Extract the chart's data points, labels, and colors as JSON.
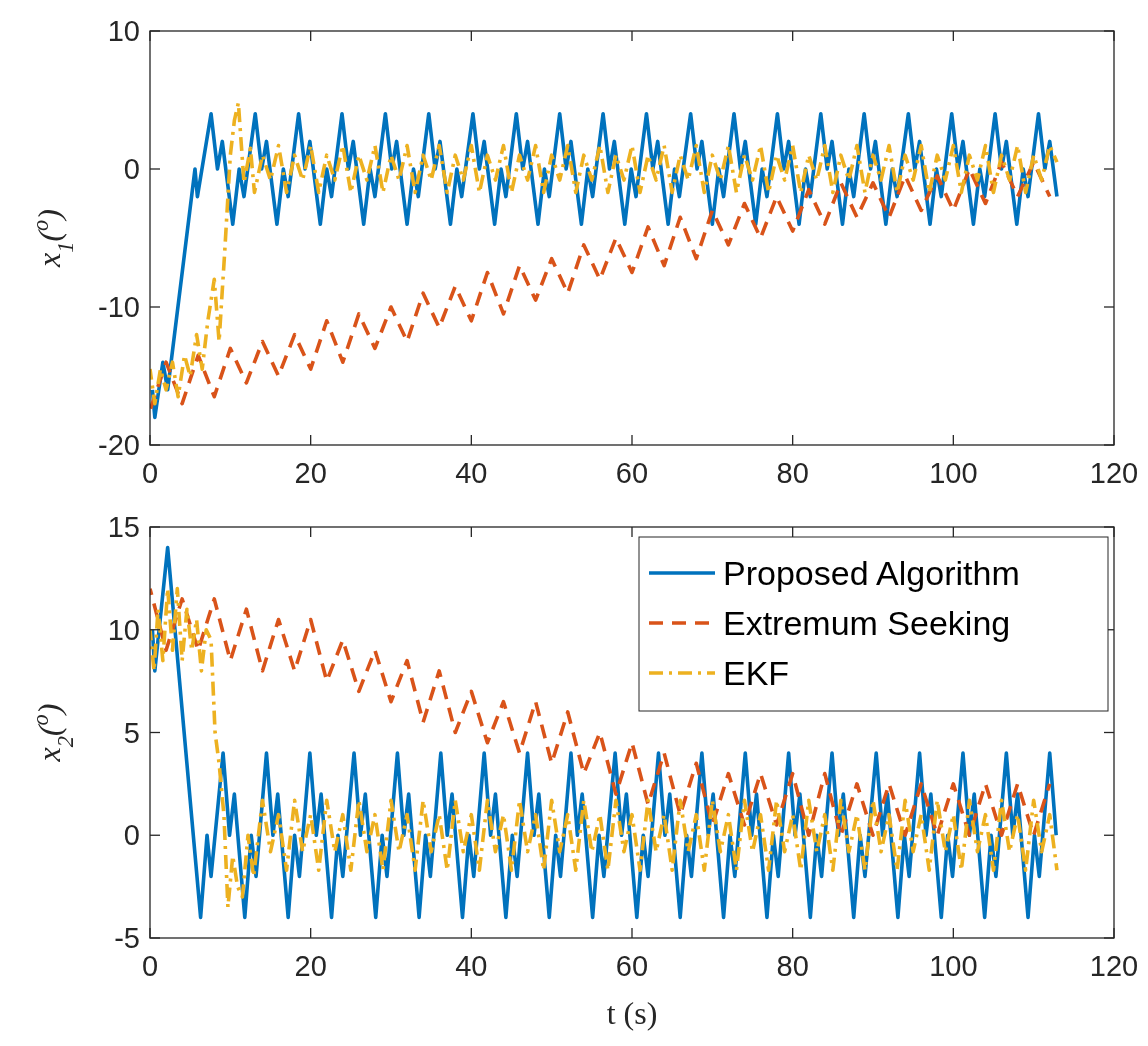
{
  "chart_data": [
    {
      "type": "line",
      "ylabel": "x$_{1}$($^{o}$)",
      "xlim": [
        0,
        120
      ],
      "xticks": [
        0,
        20,
        40,
        60,
        80,
        100,
        120
      ],
      "ylim": [
        -20,
        10
      ],
      "yticks": [
        -20,
        -10,
        0,
        10
      ],
      "legend": false,
      "series": [
        {
          "color": "#0072bd",
          "line_style": "solid",
          "x": [
            0.3,
            0.6,
            1.6,
            2.2,
            5.6,
            5.9,
            7.6,
            8.4,
            9.0,
            10.3,
            11.1,
            11.7,
            13.1,
            13.9,
            14.5,
            15.8,
            16.6,
            17.2,
            18.5,
            19.3,
            19.9,
            21.2,
            22.0,
            22.6,
            23.9,
            24.7,
            25.3,
            26.6,
            27.4,
            28.0,
            29.3,
            30.1,
            30.7,
            32.0,
            32.8,
            33.4,
            34.7,
            35.5,
            36.1,
            37.4,
            38.2,
            38.8,
            40.2,
            41.0,
            41.6,
            42.9,
            43.7,
            44.3,
            45.6,
            46.4,
            47.0,
            48.3,
            49.1,
            49.7,
            51.0,
            51.8,
            52.4,
            53.7,
            54.5,
            55.1,
            56.4,
            57.2,
            57.8,
            59.1,
            59.9,
            60.5,
            61.8,
            62.6,
            63.2,
            64.5,
            65.3,
            65.9,
            67.3,
            68.1,
            68.7,
            70.0,
            70.8,
            71.4,
            72.7,
            73.5,
            74.1,
            75.4,
            76.2,
            76.8,
            78.1,
            78.9,
            79.5,
            80.8,
            81.6,
            82.2,
            83.5,
            84.3,
            84.9,
            86.2,
            87.0,
            87.6,
            88.9,
            89.7,
            90.3,
            91.6,
            92.4,
            93.0,
            94.4,
            95.2,
            95.8,
            97.1,
            97.9,
            98.5,
            99.8,
            100.6,
            101.2,
            102.5,
            103.3,
            103.9,
            105.2,
            106.0,
            106.6,
            107.9,
            108.7,
            109.3,
            110.6,
            111.4,
            112.0,
            112.9
          ],
          "values": [
            -16,
            -18,
            -14,
            -16,
            0,
            -2,
            4,
            0,
            2,
            -4,
            0,
            -2,
            4,
            0,
            2,
            -4,
            0,
            -2,
            4,
            0,
            2,
            -4,
            0,
            -2,
            4,
            0,
            2,
            -4,
            0,
            -2,
            4,
            0,
            2,
            -4,
            0,
            -2,
            4,
            0,
            2,
            -4,
            0,
            -2,
            4,
            0,
            2,
            -4,
            0,
            -2,
            4,
            0,
            2,
            -4,
            0,
            -2,
            4,
            0,
            2,
            -4,
            0,
            -2,
            4,
            0,
            2,
            -4,
            0,
            -2,
            4,
            0,
            2,
            -4,
            0,
            -2,
            4,
            0,
            2,
            -4,
            0,
            -2,
            4,
            0,
            2,
            -4,
            0,
            -2,
            4,
            0,
            2,
            -4,
            0,
            -2,
            4,
            0,
            2,
            -4,
            0,
            -2,
            4,
            0,
            2,
            -4,
            0,
            -2,
            4,
            0,
            2,
            -4,
            0,
            -2,
            4,
            0,
            2,
            -4,
            0,
            -2,
            4,
            0,
            2,
            -4,
            0,
            -2,
            4,
            0,
            2,
            -2
          ]
        },
        {
          "color": "#d95319",
          "line_style": "dashed",
          "x": [
            0,
            2,
            4,
            6,
            8,
            10,
            12,
            14,
            16,
            18,
            20,
            22,
            24,
            26,
            28,
            30,
            32,
            34,
            36,
            38,
            40,
            42,
            44,
            46,
            48,
            50,
            52,
            54,
            56,
            58,
            60,
            62,
            64,
            66,
            68,
            70,
            72,
            74,
            76,
            78,
            80,
            82,
            84,
            86,
            88,
            90,
            92,
            94,
            96,
            98,
            100,
            102,
            104,
            106,
            108,
            110,
            112
          ],
          "values": [
            -17.5,
            -14,
            -17,
            -13.5,
            -16.5,
            -13,
            -15.5,
            -12.5,
            -15,
            -12,
            -14.5,
            -11,
            -14,
            -10.5,
            -13,
            -10,
            -12.5,
            -9,
            -11.5,
            -8.5,
            -11,
            -7.5,
            -10.5,
            -7,
            -9.5,
            -6.5,
            -9,
            -5.5,
            -8,
            -5,
            -7.5,
            -4.2,
            -7,
            -3.5,
            -6.5,
            -3,
            -5.5,
            -2.5,
            -5,
            -2,
            -4.5,
            -1.5,
            -4,
            -1,
            -3.5,
            -1,
            -3.5,
            -0.5,
            -3,
            -0.5,
            -3,
            0,
            -2.5,
            0.5,
            -2,
            0.5,
            -2
          ]
        },
        {
          "color": "#edb120",
          "line_style": "dashdot",
          "x": [
            0,
            0.6,
            1.3,
            2,
            2.8,
            3.5,
            4.3,
            5,
            5.8,
            6.5,
            7.2,
            8,
            8.6,
            9.3,
            10,
            10.5,
            11,
            11.7,
            12.5,
            13,
            14,
            15,
            16,
            17,
            18,
            19,
            20,
            21,
            22,
            23,
            24,
            25,
            26,
            27,
            28,
            29,
            30,
            31,
            32,
            33,
            34,
            35,
            36,
            37,
            38,
            39,
            40,
            41,
            42,
            43,
            44,
            45,
            46,
            47,
            48,
            49,
            50,
            51,
            52,
            53,
            54,
            55,
            56,
            57,
            58,
            59,
            60,
            61,
            62,
            63,
            64,
            65,
            66,
            67,
            68,
            69,
            70,
            71,
            72,
            73,
            74,
            75,
            76,
            77,
            78,
            79,
            80,
            81,
            82,
            83,
            84,
            85,
            86,
            87,
            88,
            89,
            90,
            91,
            92,
            93,
            94,
            95,
            96,
            97,
            98,
            99,
            100,
            101,
            102,
            103,
            104,
            105,
            106,
            107,
            108,
            109,
            110,
            111,
            112,
            112.9
          ],
          "values": [
            -14.5,
            -17,
            -14.5,
            -16,
            -14,
            -16.5,
            -13.5,
            -15,
            -12,
            -14.5,
            -11,
            -8,
            -12.5,
            -6,
            1,
            3.5,
            4.8,
            -1,
            1.5,
            -1.7,
            1.0,
            -0.8,
            1.7,
            -1.7,
            1.0,
            -0.8,
            1.7,
            -1.7,
            1.0,
            -0.8,
            1.7,
            -1.7,
            1.0,
            -0.8,
            1.7,
            -1.7,
            1.0,
            -0.8,
            1.7,
            -1.7,
            1.0,
            -0.8,
            1.7,
            -1.7,
            1.0,
            -0.8,
            1.7,
            -1.7,
            1.0,
            -0.8,
            1.7,
            -1.7,
            1.0,
            -0.8,
            1.7,
            -1.7,
            1.0,
            -0.8,
            1.7,
            -1.7,
            1.0,
            -0.8,
            1.7,
            -1.7,
            1.0,
            -0.8,
            1.7,
            -1.7,
            1.0,
            -0.8,
            1.7,
            -1.7,
            1.0,
            -0.8,
            1.7,
            -1.7,
            1.0,
            -0.8,
            1.7,
            -1.7,
            1.0,
            -0.8,
            1.7,
            -1.7,
            1.0,
            -0.8,
            1.7,
            -1.7,
            1.0,
            -0.8,
            1.7,
            -1.7,
            1.0,
            -0.8,
            1.7,
            -1.7,
            1.0,
            -0.8,
            1.7,
            -1.7,
            1.0,
            -0.8,
            1.7,
            -1.7,
            1.0,
            -0.8,
            1.7,
            -1.7,
            1.0,
            -0.8,
            1.7,
            -1.7,
            1.0,
            -0.8,
            1.7,
            -1.7,
            1.0,
            -0.8,
            1.7,
            0.5
          ]
        }
      ]
    },
    {
      "type": "line",
      "xlabel": "t (s)",
      "ylabel": "x$_{2}$($^{o}$)",
      "xlim": [
        0,
        120
      ],
      "xticks": [
        0,
        20,
        40,
        60,
        80,
        100,
        120
      ],
      "ylim": [
        -5,
        15
      ],
      "yticks": [
        -5,
        0,
        5,
        10,
        15
      ],
      "legend": "top right",
      "series": [
        {
          "name": "Proposed Algorithm",
          "color": "#0072bd",
          "line_style": "solid",
          "x": [
            0.3,
            0.6,
            2.2,
            6.3,
            7.1,
            7.6,
            9.1,
            9.9,
            10.5,
            11.8,
            12.6,
            13.2,
            14.5,
            15.3,
            15.9,
            17.2,
            18.0,
            18.6,
            19.9,
            20.7,
            21.3,
            22.6,
            23.4,
            24.0,
            25.4,
            26.2,
            26.8,
            28.1,
            28.9,
            29.5,
            30.8,
            31.6,
            32.2,
            33.5,
            34.3,
            34.9,
            36.2,
            37.0,
            37.6,
            38.9,
            39.7,
            40.3,
            41.6,
            42.4,
            43.0,
            44.3,
            45.1,
            45.7,
            47.0,
            47.8,
            48.4,
            49.7,
            50.5,
            51.1,
            52.4,
            53.2,
            53.8,
            55.1,
            55.9,
            56.5,
            57.9,
            58.7,
            59.3,
            60.6,
            61.4,
            62.0,
            63.3,
            64.1,
            64.7,
            66.0,
            66.8,
            67.4,
            68.7,
            69.5,
            70.1,
            71.4,
            72.2,
            72.8,
            74.1,
            74.9,
            75.5,
            76.8,
            77.6,
            78.2,
            79.5,
            80.3,
            80.9,
            82.2,
            83.0,
            83.6,
            84.9,
            85.7,
            86.3,
            87.6,
            88.4,
            89.0,
            90.4,
            91.2,
            91.8,
            93.1,
            93.9,
            94.5,
            95.8,
            96.6,
            97.2,
            98.5,
            99.3,
            99.9,
            101.2,
            102.0,
            102.6,
            103.9,
            104.7,
            105.3,
            106.6,
            107.4,
            108.0,
            109.3,
            110.1,
            110.7,
            112.0,
            112.8
          ],
          "values": [
            10,
            8,
            14,
            -4,
            0,
            -2,
            4,
            0,
            2,
            -4,
            0,
            -2,
            4,
            0,
            2,
            -4,
            0,
            -2,
            4,
            0,
            2,
            -4,
            0,
            -2,
            4,
            0,
            2,
            -4,
            0,
            -2,
            4,
            0,
            2,
            -4,
            0,
            -2,
            4,
            0,
            2,
            -4,
            0,
            -2,
            4,
            0,
            2,
            -4,
            0,
            -2,
            4,
            0,
            2,
            -4,
            0,
            -2,
            4,
            0,
            2,
            -4,
            0,
            -2,
            4,
            0,
            2,
            -4,
            0,
            -2,
            4,
            0,
            2,
            -4,
            0,
            -2,
            4,
            0,
            2,
            -4,
            0,
            -2,
            4,
            0,
            2,
            -4,
            0,
            -2,
            4,
            0,
            2,
            -4,
            0,
            -2,
            4,
            0,
            2,
            -4,
            0,
            -2,
            4,
            0,
            2,
            -4,
            0,
            -2,
            4,
            0,
            2,
            -4,
            0,
            -2,
            4,
            0,
            2,
            -4,
            0,
            -2,
            4,
            0,
            2,
            -4,
            0,
            -2,
            4,
            0
          ]
        },
        {
          "name": "Extremum Seeking",
          "color": "#d95319",
          "line_style": "dashed",
          "x": [
            0,
            2,
            4,
            6,
            8,
            10,
            12,
            14,
            16,
            18,
            20,
            22,
            24,
            26,
            28,
            30,
            32,
            34,
            36,
            38,
            40,
            42,
            44,
            46,
            48,
            50,
            52,
            54,
            56,
            58,
            60,
            62,
            64,
            66,
            68,
            70,
            72,
            74,
            76,
            78,
            80,
            82,
            84,
            86,
            88,
            90,
            92,
            94,
            96,
            98,
            100,
            102,
            104,
            106,
            108,
            110,
            112
          ],
          "values": [
            12,
            9,
            11.5,
            9,
            11.5,
            8.5,
            11,
            8,
            10.5,
            8,
            10.5,
            7.5,
            9.5,
            7,
            9,
            6.5,
            8.5,
            5.5,
            8,
            5,
            7,
            4.5,
            6.5,
            4,
            6.5,
            3.5,
            6,
            3,
            5,
            2,
            4.5,
            1.5,
            4,
            1,
            3.5,
            0.5,
            3,
            0.5,
            3,
            0.5,
            3,
            0,
            3,
            0,
            2.5,
            0,
            2.5,
            0,
            2.5,
            0,
            2.5,
            0,
            2.5,
            0,
            2.5,
            0,
            2.5
          ]
        },
        {
          "name": "EKF",
          "color": "#edb120",
          "line_style": "dashdot",
          "x": [
            0,
            0.5,
            1,
            1.6,
            2.2,
            2.8,
            3.4,
            4,
            4.6,
            5.2,
            5.8,
            6.4,
            7,
            7.6,
            8.1,
            8.6,
            9.2,
            9.7,
            10.3,
            10.9,
            11.5,
            12.2,
            12.9,
            14,
            15,
            16,
            17,
            18,
            19,
            20,
            21,
            22,
            23,
            24,
            25,
            26,
            27,
            28,
            29,
            30,
            31,
            32,
            33,
            34,
            35,
            36,
            37,
            38,
            39,
            40,
            41,
            42,
            43,
            44,
            45,
            46,
            47,
            48,
            49,
            50,
            51,
            52,
            53,
            54,
            55,
            56,
            57,
            58,
            59,
            60,
            61,
            62,
            63,
            64,
            65,
            66,
            67,
            68,
            69,
            70,
            71,
            72,
            73,
            74,
            75,
            76,
            77,
            78,
            79,
            80,
            81,
            82,
            83,
            84,
            85,
            86,
            87,
            88,
            89,
            90,
            91,
            92,
            93,
            94,
            95,
            96,
            97,
            98,
            99,
            100,
            101,
            102,
            103,
            104,
            105,
            106,
            107,
            108,
            109,
            110,
            111,
            112,
            112.9
          ],
          "values": [
            10,
            8,
            11,
            8.5,
            12,
            9,
            12,
            8.5,
            11,
            9,
            10.5,
            8,
            10,
            9.5,
            5,
            3.5,
            1,
            -3.5,
            -1,
            -2.5,
            -3,
            0,
            -2,
            1.7,
            -0.8,
            1.0,
            -1.7,
            1.7,
            -0.8,
            1.0,
            -1.7,
            1.7,
            -0.8,
            1.0,
            -1.7,
            1.7,
            -0.8,
            1.0,
            -1.7,
            1.7,
            -0.8,
            1.0,
            -1.7,
            1.7,
            -0.8,
            1.0,
            -1.7,
            1.7,
            -0.8,
            1.0,
            -1.7,
            1.7,
            -0.8,
            1.0,
            -1.7,
            1.7,
            -0.8,
            1.0,
            -1.7,
            1.7,
            -0.8,
            1.0,
            -1.7,
            1.7,
            -0.8,
            1.0,
            -1.7,
            1.7,
            -0.8,
            1.0,
            -1.7,
            1.7,
            -0.8,
            1.0,
            -1.7,
            1.7,
            -0.8,
            1.0,
            -1.7,
            1.7,
            -0.8,
            1.0,
            -1.7,
            1.7,
            -0.8,
            1.0,
            -1.7,
            1.7,
            -0.8,
            1.0,
            -1.7,
            1.7,
            -0.8,
            1.0,
            -1.7,
            1.7,
            -0.8,
            1.0,
            -1.7,
            1.7,
            -0.8,
            1.0,
            -1.7,
            1.7,
            -0.8,
            1.0,
            -1.7,
            1.7,
            -0.8,
            1.0,
            -1.7,
            1.7,
            -0.8,
            1.0,
            -1.7,
            1.7,
            -0.8,
            1.0,
            -1.7,
            1.7,
            -0.8,
            1.0,
            -1.7
          ]
        }
      ]
    }
  ]
}
